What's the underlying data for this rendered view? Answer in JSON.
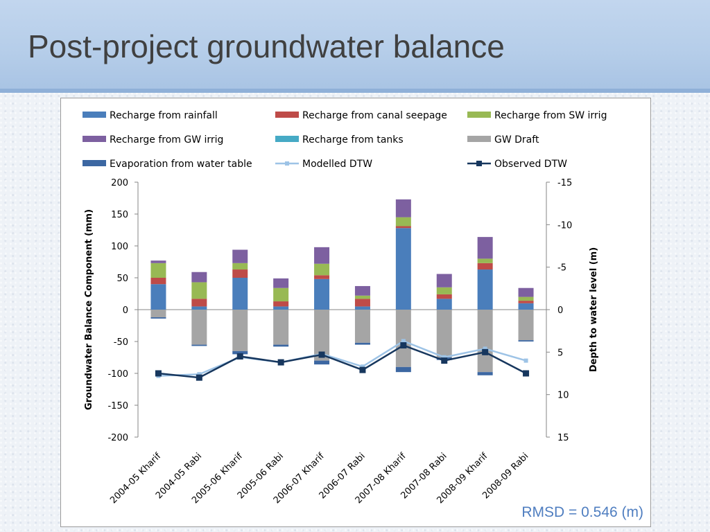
{
  "title": "Post-project groundwater balance",
  "rmsd": "RMSD = 0.546 (m)",
  "chart_data": {
    "type": "bar",
    "stacked": true,
    "categories": [
      "2004-05 Kharif",
      "2004-05 Rabi",
      "2005-06 Kharif",
      "2005-06 Rabi",
      "2006-07 Kharif",
      "2006-07 Rabi",
      "2007-08 Kharif",
      "2007-08 Rabi",
      "2008-09 Kharif",
      "2008-09 Rabi"
    ],
    "ylabel": "Groundwater Balance  Component (mm)",
    "y2label": "Depth to water level (m)",
    "ylim": [
      -200,
      200
    ],
    "yticks": [
      200,
      150,
      100,
      50,
      0,
      -50,
      -100,
      -150,
      -200
    ],
    "y2lim": [
      -15,
      15
    ],
    "y2ticks": [
      -15,
      -10,
      -5,
      0,
      5,
      10,
      15
    ],
    "y2_inverted": true,
    "legend_position": "top",
    "series": [
      {
        "name": "Recharge from rainfall",
        "color": "#4a7ebb",
        "values": [
          40,
          5,
          50,
          5,
          48,
          5,
          128,
          17,
          63,
          10
        ]
      },
      {
        "name": "Recharge from canal seepage",
        "color": "#be4b48",
        "values": [
          10,
          12,
          13,
          8,
          6,
          12,
          3,
          7,
          10,
          4
        ]
      },
      {
        "name": "Recharge from SW irrig",
        "color": "#98b954",
        "values": [
          23,
          26,
          10,
          21,
          18,
          5,
          14,
          11,
          7,
          6
        ]
      },
      {
        "name": "Recharge from GW irrig",
        "color": "#7d60a0",
        "values": [
          4,
          16,
          21,
          15,
          26,
          15,
          28,
          21,
          34,
          14
        ]
      },
      {
        "name": "Recharge from tanks",
        "color": "#46aac5",
        "values": [
          0,
          0,
          0,
          0,
          0,
          0,
          0,
          0,
          0,
          0
        ]
      },
      {
        "name": "GW Draft",
        "color": "#a5a5a5",
        "values": [
          -12,
          -55,
          -65,
          -55,
          -80,
          -52,
          -90,
          -75,
          -98,
          -48
        ]
      },
      {
        "name": "Evaporation from water table",
        "color": "#3c67a2",
        "values": [
          -2,
          -2,
          -5,
          -3,
          -6,
          -3,
          -8,
          -4,
          -5,
          -2
        ]
      },
      {
        "name": "Modelled DTW",
        "kind": "line",
        "axis": "y2",
        "color": "#9dc3e6",
        "values": [
          7.8,
          7.6,
          5.6,
          6.2,
          5.2,
          6.7,
          3.7,
          5.6,
          4.6,
          6.0
        ]
      },
      {
        "name": "Observed DTW",
        "kind": "line",
        "axis": "y2",
        "color": "#17375e",
        "values": [
          7.5,
          8.0,
          5.5,
          6.2,
          5.3,
          7.1,
          4.2,
          6.0,
          5.0,
          7.5
        ]
      }
    ]
  }
}
